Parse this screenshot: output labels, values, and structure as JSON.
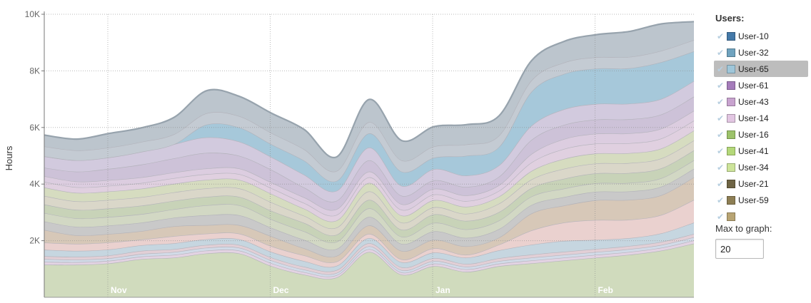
{
  "legend": {
    "title": "Users:",
    "check_glyph": "✔",
    "items": [
      {
        "label": "User-10",
        "color": "#4479a8",
        "active": false
      },
      {
        "label": "User-32",
        "color": "#6fa3bf",
        "active": false
      },
      {
        "label": "User-65",
        "color": "#9fc6d9",
        "active": true
      },
      {
        "label": "User-61",
        "color": "#a57cbb",
        "active": false
      },
      {
        "label": "User-43",
        "color": "#c8a3cf",
        "active": false
      },
      {
        "label": "User-14",
        "color": "#e2c6e2",
        "active": false
      },
      {
        "label": "User-16",
        "color": "#9cc26a",
        "active": false
      },
      {
        "label": "User-41",
        "color": "#b4d879",
        "active": false
      },
      {
        "label": "User-34",
        "color": "#cde49a",
        "active": false
      },
      {
        "label": "User-21",
        "color": "#6e6444",
        "active": false
      },
      {
        "label": "User-59",
        "color": "#8d7e54",
        "active": false
      },
      {
        "label": "",
        "color": "#b8a473",
        "active": false
      }
    ]
  },
  "max_graph": {
    "label": "Max to graph:",
    "value": "20"
  },
  "chart_data": {
    "type": "area",
    "ylabel": "Hours",
    "ylim": [
      0,
      10000
    ],
    "yticks": [
      {
        "value": 2000,
        "label": "2K"
      },
      {
        "value": 4000,
        "label": "4K"
      },
      {
        "value": 6000,
        "label": "6K"
      },
      {
        "value": 8000,
        "label": "8K"
      },
      {
        "value": 10000,
        "label": "10K"
      }
    ],
    "x": [
      0,
      1,
      2,
      3,
      4,
      5,
      6,
      7,
      8,
      9,
      10,
      11,
      12,
      13,
      14,
      15,
      16,
      17,
      18,
      19,
      20
    ],
    "xticks": [
      {
        "x": 2,
        "label": "Nov"
      },
      {
        "x": 7,
        "label": "Dec"
      },
      {
        "x": 12,
        "label": "Jan"
      },
      {
        "x": 17,
        "label": "Feb"
      }
    ],
    "grid": true,
    "legend_position": "right",
    "layer_colors": [
      "#d0dbbd",
      "#e3d3e3",
      "#d2dbe8",
      "#e2cfd6",
      "#c6d6e0",
      "#ead1cf",
      "#d7c8b8",
      "#c9c9c9",
      "#d2d8c4",
      "#c8d3b8",
      "#dad7c9",
      "#d6dcc0",
      "#e0d0e0",
      "#dccde0",
      "#cdc2d8",
      "#d2cade",
      "#a6c8da",
      "#c4cbd3",
      "#bcc5cd"
    ],
    "series": [
      {
        "values": [
          1150,
          1150,
          1200,
          1350,
          1400,
          1550,
          1550,
          1100,
          800,
          700,
          1600,
          800,
          1100,
          900,
          1100,
          1200,
          1300,
          1400,
          1500,
          1650,
          1900
        ]
      },
      {
        "values": [
          100,
          90,
          90,
          90,
          100,
          100,
          100,
          100,
          90,
          80,
          100,
          80,
          90,
          90,
          90,
          100,
          100,
          100,
          100,
          100,
          110
        ]
      },
      {
        "values": [
          100,
          90,
          90,
          90,
          100,
          100,
          100,
          100,
          90,
          80,
          100,
          80,
          90,
          90,
          90,
          100,
          100,
          100,
          100,
          100,
          110
        ]
      },
      {
        "values": [
          100,
          100,
          100,
          110,
          100,
          100,
          100,
          100,
          100,
          100,
          110,
          100,
          100,
          100,
          100,
          110,
          110,
          110,
          110,
          110,
          120
        ]
      },
      {
        "values": [
          230,
          210,
          210,
          200,
          210,
          200,
          200,
          200,
          200,
          150,
          180,
          180,
          200,
          220,
          280,
          350,
          380,
          320,
          280,
          300,
          400
        ]
      },
      {
        "values": [
          250,
          250,
          250,
          200,
          250,
          200,
          200,
          200,
          200,
          150,
          150,
          100,
          150,
          100,
          200,
          500,
          650,
          700,
          650,
          650,
          800
        ]
      },
      {
        "values": [
          450,
          300,
          300,
          300,
          350,
          300,
          300,
          350,
          250,
          200,
          300,
          300,
          300,
          300,
          250,
          600,
          600,
          700,
          700,
          700,
          800
        ]
      },
      {
        "values": [
          300,
          300,
          300,
          300,
          300,
          350,
          350,
          300,
          300,
          250,
          300,
          250,
          300,
          300,
          300,
          300,
          300,
          300,
          300,
          300,
          300
        ]
      },
      {
        "values": [
          300,
          300,
          300,
          300,
          300,
          350,
          350,
          300,
          300,
          250,
          300,
          250,
          300,
          300,
          300,
          300,
          300,
          300,
          300,
          300,
          300
        ]
      },
      {
        "values": [
          300,
          300,
          300,
          300,
          300,
          300,
          300,
          300,
          300,
          250,
          300,
          250,
          300,
          300,
          300,
          300,
          350,
          350,
          350,
          350,
          350
        ]
      },
      {
        "values": [
          300,
          300,
          300,
          300,
          300,
          300,
          300,
          300,
          250,
          250,
          300,
          250,
          250,
          250,
          300,
          300,
          350,
          350,
          350,
          350,
          350
        ]
      },
      {
        "values": [
          300,
          300,
          300,
          300,
          300,
          300,
          300,
          300,
          250,
          250,
          300,
          250,
          250,
          250,
          250,
          300,
          350,
          350,
          350,
          350,
          350
        ]
      },
      {
        "values": [
          200,
          200,
          200,
          200,
          200,
          200,
          200,
          200,
          200,
          200,
          200,
          200,
          200,
          200,
          200,
          300,
          350,
          350,
          350,
          350,
          350
        ]
      },
      {
        "values": [
          200,
          200,
          200,
          200,
          200,
          200,
          200,
          200,
          200,
          200,
          200,
          200,
          200,
          200,
          200,
          300,
          350,
          350,
          350,
          350,
          350
        ]
      },
      {
        "values": [
          300,
          350,
          400,
          450,
          500,
          550,
          450,
          450,
          350,
          300,
          400,
          300,
          300,
          300,
          300,
          500,
          500,
          500,
          500,
          500,
          500
        ]
      },
      {
        "values": [
          400,
          400,
          400,
          450,
          500,
          550,
          500,
          450,
          450,
          350,
          450,
          350,
          400,
          400,
          400,
          500,
          550,
          550,
          550,
          550,
          550
        ]
      },
      {
        "values": [
          0,
          0,
          0,
          0,
          0,
          450,
          500,
          450,
          500,
          350,
          500,
          500,
          400,
          700,
          650,
          1200,
          1250,
          1250,
          1250,
          1300,
          1050
        ]
      },
      {
        "values": [
          350,
          350,
          350,
          350,
          350,
          400,
          400,
          400,
          400,
          350,
          400,
          400,
          400,
          400,
          400,
          400,
          400,
          400,
          400,
          400,
          400
        ]
      },
      {
        "values": [
          400,
          400,
          500,
          500,
          600,
          800,
          700,
          700,
          700,
          500,
          800,
          700,
          700,
          700,
          700,
          700,
          750,
          800,
          900,
          950,
          650
        ]
      }
    ]
  }
}
